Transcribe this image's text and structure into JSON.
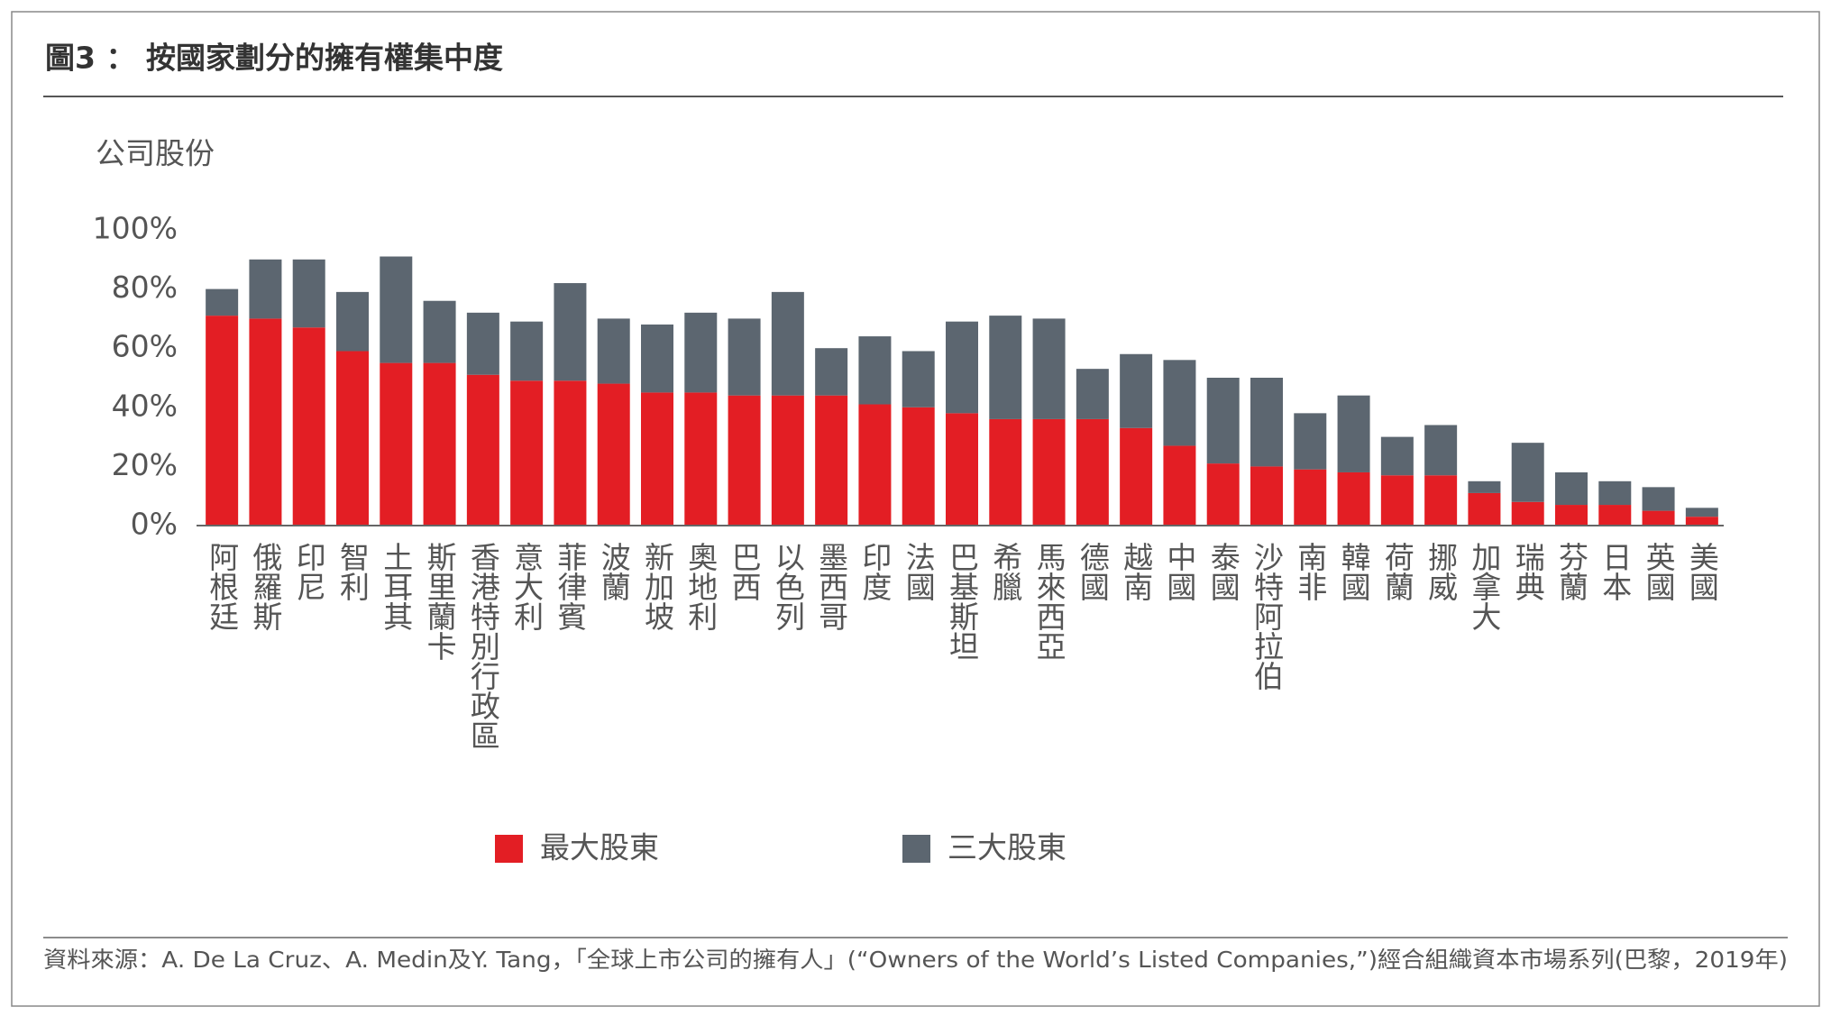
{
  "chart_data": {
    "type": "stacked_bar",
    "title": "圖3 ： 按國家劃分的擁有權集中度",
    "y_label": "公司股份",
    "source": "資料來源：A. De La Cruz、A. Medin及Y. Tang，「全球上市公司的擁有人」(“Owners of the World’s Listed Companies,”)經合組織資本市場系列(巴黎，2019年)",
    "categories": [
      "阿根廷",
      "俄羅斯",
      "印尼",
      "智利",
      "土耳其",
      "斯里蘭卡",
      "香港特別行政區",
      "意大利",
      "菲律賓",
      "波蘭",
      "新加坡",
      "奧地利",
      "巴西",
      "以色列",
      "墨西哥",
      "印度",
      "法國",
      "巴基斯坦",
      "希臘",
      "馬來西亞",
      "德國",
      "越南",
      "中國",
      "泰國",
      "沙特阿拉伯",
      "南非",
      "韓國",
      "荷蘭",
      "挪威",
      "加拿大",
      "瑞典",
      "芬蘭",
      "日本",
      "英國",
      "美國"
    ],
    "series": [
      {
        "name": "最大股東",
        "color": "#e31e24",
        "values": [
          71,
          70,
          67,
          59,
          55,
          55,
          51,
          49,
          49,
          48,
          45,
          45,
          44,
          44,
          44,
          41,
          40,
          38,
          36,
          36,
          36,
          33,
          27,
          21,
          20,
          19,
          18,
          17,
          17,
          11,
          8,
          7,
          7,
          5,
          3
        ]
      },
      {
        "name": "三大股東",
        "color": "#5c6670",
        "values": [
          9,
          20,
          23,
          20,
          36,
          21,
          21,
          20,
          33,
          22,
          23,
          27,
          26,
          35,
          16,
          23,
          19,
          31,
          35,
          34,
          17,
          25,
          29,
          29,
          30,
          19,
          26,
          13,
          17,
          4,
          20,
          11,
          8,
          8,
          3
        ]
      }
    ],
    "ylim": [
      0,
      100
    ],
    "yticks": [
      {
        "value": 0,
        "label": "0%"
      },
      {
        "value": 20,
        "label": "20%"
      },
      {
        "value": 40,
        "label": "40%"
      },
      {
        "value": 60,
        "label": "60%"
      },
      {
        "value": 80,
        "label": "80%"
      },
      {
        "value": 100,
        "label": "100%"
      }
    ]
  }
}
